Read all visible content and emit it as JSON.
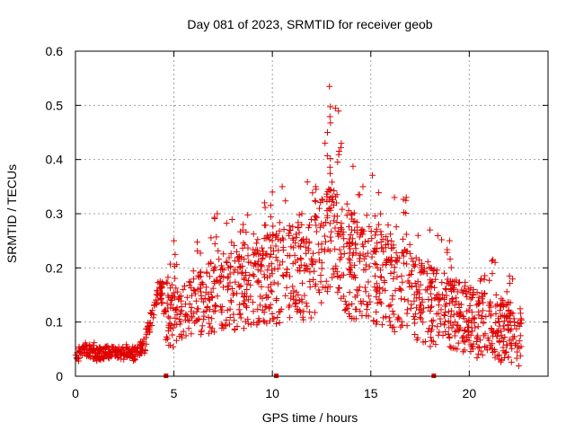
{
  "chart_data": {
    "type": "scatter",
    "title": "Day 081 of 2023, SRMTID for receiver geob",
    "xlabel": "GPS time / hours",
    "ylabel": "SRMTID / TECUs",
    "xlim": [
      0,
      24
    ],
    "ylim": [
      0,
      0.6
    ],
    "xticks": [
      0,
      5,
      10,
      15,
      20
    ],
    "xtick_labels": [
      "0",
      "5",
      "10",
      "15",
      "20"
    ],
    "yticks": [
      0,
      0.1,
      0.2,
      0.3,
      0.4,
      0.5,
      0.6
    ],
    "ytick_labels": [
      "0",
      "0.1",
      "0.2",
      "0.3",
      "0.4",
      "0.5",
      "0.6"
    ],
    "grid": true,
    "marker_color": "#e00000",
    "gap_markers_x": [
      4.6,
      10.2,
      18.2
    ],
    "series": [
      {
        "name": "SRMTID",
        "trend": [
          [
            0.0,
            0.035
          ],
          [
            0.5,
            0.05
          ],
          [
            1.0,
            0.04
          ],
          [
            2.0,
            0.045
          ],
          [
            3.0,
            0.04
          ],
          [
            3.5,
            0.06
          ],
          [
            4.0,
            0.13
          ],
          [
            4.3,
            0.16
          ],
          [
            4.6,
            0.12
          ],
          [
            5.0,
            0.11
          ],
          [
            6.0,
            0.12
          ],
          [
            7.0,
            0.15
          ],
          [
            8.0,
            0.16
          ],
          [
            9.0,
            0.17
          ],
          [
            10.0,
            0.18
          ],
          [
            11.0,
            0.19
          ],
          [
            12.0,
            0.2
          ],
          [
            12.5,
            0.23
          ],
          [
            13.0,
            0.26
          ],
          [
            13.5,
            0.22
          ],
          [
            14.0,
            0.2
          ],
          [
            15.0,
            0.19
          ],
          [
            16.0,
            0.17
          ],
          [
            17.0,
            0.15
          ],
          [
            18.0,
            0.13
          ],
          [
            19.0,
            0.12
          ],
          [
            20.0,
            0.1
          ],
          [
            21.0,
            0.09
          ],
          [
            22.0,
            0.08
          ],
          [
            22.7,
            0.075
          ]
        ],
        "peaks": [
          [
            4.3,
            0.175
          ],
          [
            5.0,
            0.25
          ],
          [
            7.2,
            0.3
          ],
          [
            8.5,
            0.27
          ],
          [
            9.6,
            0.32
          ],
          [
            10.0,
            0.34
          ],
          [
            10.5,
            0.35
          ],
          [
            11.5,
            0.3
          ],
          [
            12.2,
            0.35
          ],
          [
            12.8,
            0.45
          ],
          [
            12.9,
            0.535
          ],
          [
            13.2,
            0.495
          ],
          [
            13.5,
            0.43
          ],
          [
            14.0,
            0.3
          ],
          [
            14.6,
            0.35
          ],
          [
            15.4,
            0.28
          ],
          [
            16.2,
            0.33
          ],
          [
            16.8,
            0.33
          ],
          [
            18.0,
            0.27
          ],
          [
            19.0,
            0.25
          ],
          [
            20.6,
            0.18
          ],
          [
            21.2,
            0.215
          ],
          [
            22.0,
            0.12
          ]
        ]
      }
    ]
  }
}
